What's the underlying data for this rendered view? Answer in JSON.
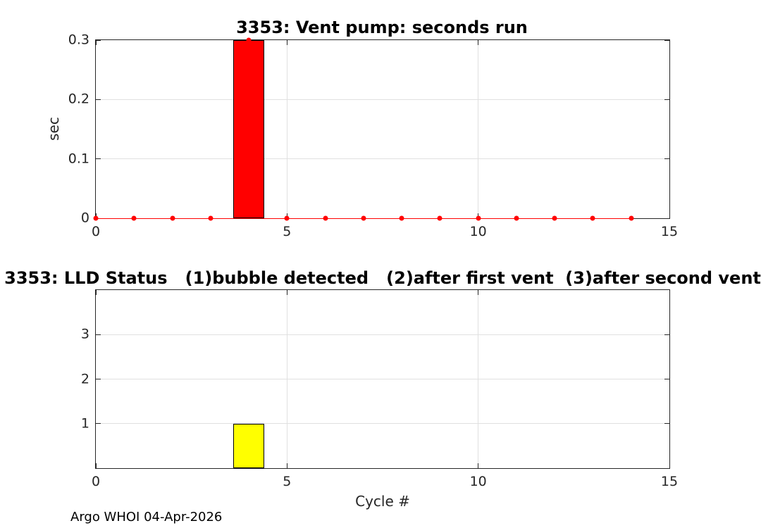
{
  "figure": {
    "background": "#ffffff",
    "footer_text": "Argo WHOI 04-Apr-2026"
  },
  "style": {
    "axis_color": "#262626",
    "grid_color": "#e0e0e0",
    "tick_label_color": "#262626",
    "tick_length": 7,
    "bar_red": "#ff0000",
    "bar_yellow": "#ffff00",
    "marker_red": "#ff0000"
  },
  "chart_data": [
    {
      "type": "bar",
      "title": "3353: Vent pump: seconds run",
      "xlabel": "",
      "ylabel": "sec",
      "xlim": [
        0,
        15
      ],
      "ylim": [
        0,
        0.3
      ],
      "grid": "on",
      "xticks": {
        "values": [
          0,
          5,
          10,
          15
        ],
        "labels": [
          "0",
          "5",
          "10",
          "15"
        ]
      },
      "yticks": {
        "values": [
          0,
          0.1,
          0.2,
          0.3
        ],
        "labels": [
          "0",
          "0.1",
          "0.2",
          "0.3"
        ]
      },
      "grid_x": [
        5,
        10
      ],
      "grid_y": [
        0.1,
        0.2
      ],
      "bars": [
        {
          "x": 4,
          "height": 0.3,
          "width": 0.8,
          "fill": "#ff0000",
          "edge": "#000000"
        }
      ],
      "markers": {
        "x": [
          0,
          1,
          2,
          3,
          4,
          5,
          6,
          7,
          8,
          9,
          10,
          11,
          12,
          13,
          14
        ],
        "y": [
          0,
          0,
          0,
          0,
          0.3,
          0,
          0,
          0,
          0,
          0,
          0,
          0,
          0,
          0,
          0
        ],
        "color": "#ff0000"
      },
      "line": {
        "x0": 0,
        "x1": 14,
        "y": 0,
        "color": "#ff0000"
      }
    },
    {
      "type": "bar",
      "title": "3353: LLD Status   (1)bubble detected   (2)after first vent  (3)after second vent",
      "xlabel": "Cycle #",
      "ylabel": "",
      "xlim": [
        0,
        15
      ],
      "ylim": [
        0,
        4
      ],
      "grid": "on",
      "xticks": {
        "values": [
          0,
          5,
          10,
          15
        ],
        "labels": [
          "0",
          "5",
          "10",
          "15"
        ]
      },
      "yticks": {
        "values": [
          1,
          2,
          3
        ],
        "labels": [
          "1",
          "2",
          "3"
        ]
      },
      "grid_x": [
        5,
        10
      ],
      "grid_y": [
        1,
        2,
        3
      ],
      "bars": [
        {
          "x": 4,
          "height": 1,
          "width": 0.8,
          "fill": "#ffff00",
          "edge": "#000000"
        }
      ]
    }
  ]
}
